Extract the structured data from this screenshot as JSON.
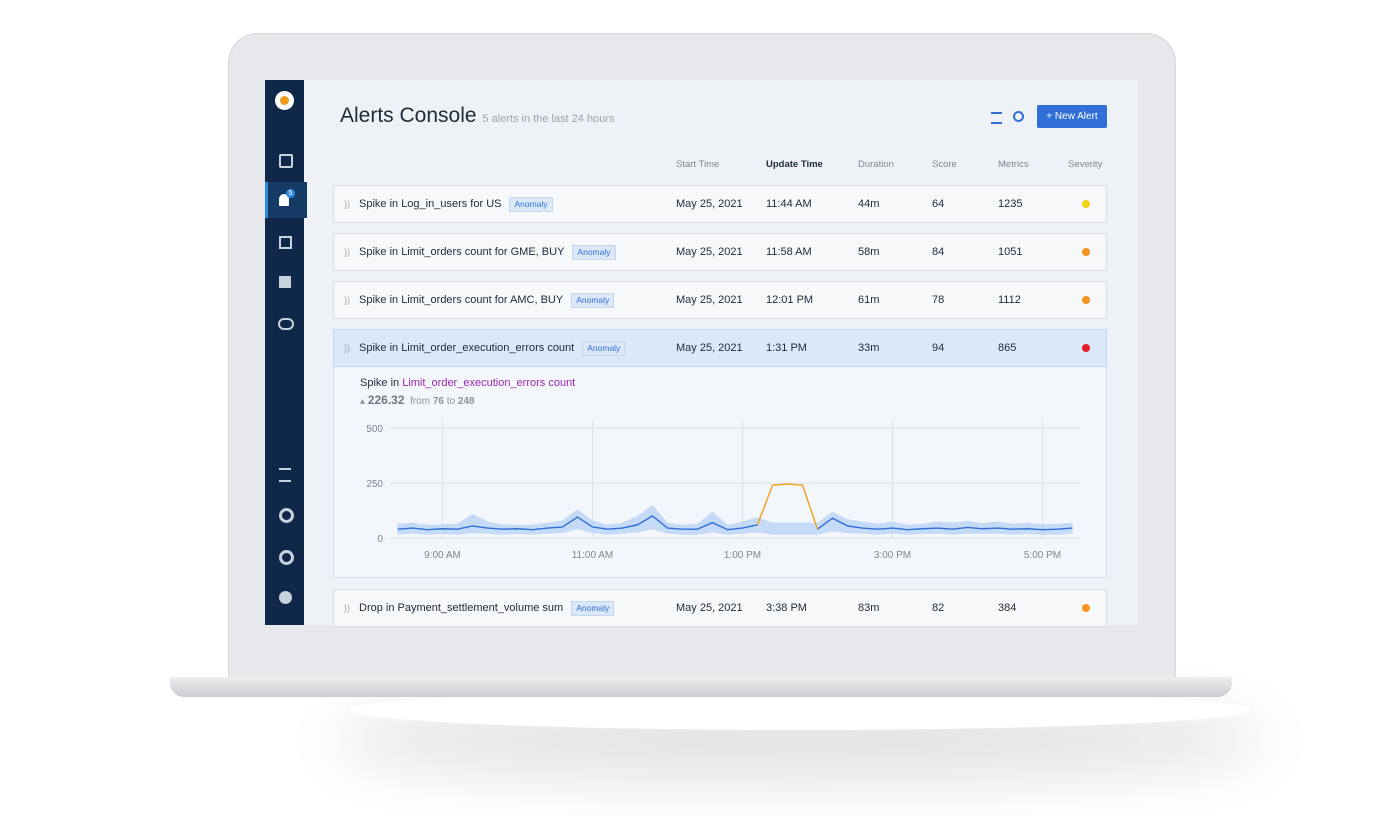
{
  "app": {
    "badge": "5"
  },
  "header": {
    "title": "Alerts Console",
    "subtitle": "5 alerts in the last 24 hours",
    "button": "New Alert"
  },
  "table": {
    "columns": [
      "Start Time",
      "Update Time",
      "Duration",
      "Score",
      "Metrics",
      "Severity"
    ],
    "rows": [
      [
        "Spike in Log_in_users for US",
        "Anomaly",
        "May 25, 2021",
        "11:44 AM",
        "44m",
        "64",
        "1235",
        "#f2d21b"
      ],
      [
        "Spike in Limit_orders count for GME, BUY",
        "Anomaly",
        "May 25, 2021",
        "11:58 AM",
        "58m",
        "84",
        "1051",
        "#f5921e"
      ],
      [
        "Spike in Limit_orders count for AMC, BUY",
        "Anomaly",
        "May 25, 2021",
        "12:01 PM",
        "61m",
        "78",
        "1112",
        "#f5921e"
      ],
      [
        "Spike in Limit_order_execution_errors count",
        "Anomaly",
        "May 25, 2021",
        "1:31 PM",
        "33m",
        "94",
        "865",
        "#e0202a"
      ],
      [
        "Drop in Payment_settlement_volume sum",
        "Anomaly",
        "May 25, 2021",
        "3:38 PM",
        "83m",
        "82",
        "384",
        "#f5921e"
      ]
    ]
  },
  "detail": {
    "prefix": "Spike in",
    "metric": "Limit_order_execution_errors count",
    "change": "226.32",
    "from_word": "from",
    "from": "76",
    "to_word": "to",
    "to": "248"
  },
  "chart": {
    "type": "line",
    "x": [
      8.4,
      8.6,
      8.8,
      9.0,
      9.2,
      9.4,
      9.6,
      9.8,
      10.0,
      10.2,
      10.4,
      10.6,
      10.8,
      11.0,
      11.2,
      11.4,
      11.6,
      11.8,
      12.0,
      12.2,
      12.4,
      12.6,
      12.8,
      13.0,
      13.2,
      13.4,
      13.6,
      13.8,
      14.0,
      14.2,
      14.4,
      14.6,
      14.8,
      15.0,
      15.2,
      15.4,
      15.6,
      15.8,
      16.0,
      16.2,
      16.4,
      16.6,
      16.8,
      17.0,
      17.2,
      17.4
    ],
    "series": [
      {
        "color": "#2f6fd6",
        "values": [
          40,
          45,
          38,
          42,
          40,
          55,
          45,
          40,
          42,
          38,
          45,
          50,
          95,
          50,
          40,
          45,
          60,
          100,
          45,
          40,
          40,
          70,
          38,
          45,
          60,
          null,
          null,
          null,
          40,
          90,
          55,
          45,
          40,
          45,
          38,
          42,
          45,
          40,
          48,
          42,
          45,
          40,
          42,
          38,
          40,
          45
        ]
      },
      {
        "color": "#f0a020",
        "values": [
          null,
          null,
          null,
          null,
          null,
          null,
          null,
          null,
          null,
          null,
          null,
          null,
          null,
          null,
          null,
          null,
          null,
          null,
          null,
          null,
          null,
          null,
          null,
          null,
          60,
          240,
          245,
          240,
          40,
          null,
          null,
          null,
          null,
          null,
          null,
          null,
          null,
          null,
          null,
          null,
          null,
          null,
          null,
          null,
          null,
          null
        ]
      }
    ],
    "band": {
      "color": "#b9d3f5",
      "upper": [
        65,
        70,
        60,
        62,
        65,
        110,
        75,
        62,
        60,
        60,
        70,
        80,
        130,
        80,
        60,
        70,
        100,
        150,
        70,
        60,
        65,
        120,
        60,
        75,
        95,
        70,
        70,
        70,
        70,
        120,
        85,
        75,
        65,
        75,
        60,
        65,
        75,
        70,
        78,
        68,
        75,
        65,
        70,
        62,
        65,
        70
      ],
      "lower": [
        15,
        20,
        15,
        18,
        15,
        22,
        20,
        15,
        18,
        15,
        20,
        22,
        40,
        22,
        15,
        20,
        25,
        40,
        20,
        15,
        15,
        25,
        15,
        20,
        25,
        15,
        15,
        15,
        15,
        30,
        22,
        20,
        15,
        20,
        15,
        18,
        20,
        15,
        20,
        18,
        20,
        15,
        18,
        15,
        15,
        20
      ]
    },
    "xlim": [
      8.3,
      17.5
    ],
    "ylim": [
      0,
      500
    ],
    "yticks": [
      0,
      250,
      500
    ],
    "xticks": [
      {
        "value": 9,
        "label": "9:00 AM"
      },
      {
        "value": 11,
        "label": "11:00 AM"
      },
      {
        "value": 13,
        "label": "1:00 PM"
      },
      {
        "value": 15,
        "label": "3:00 PM"
      },
      {
        "value": 17,
        "label": "5:00 PM"
      }
    ],
    "grid": true
  }
}
